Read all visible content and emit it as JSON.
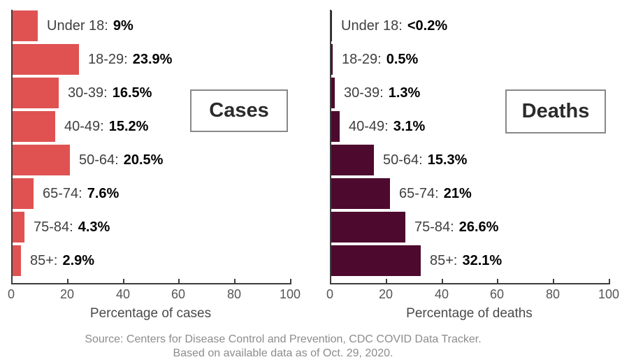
{
  "chart_data": [
    {
      "type": "bar",
      "orientation": "horizontal",
      "title": "Cases",
      "xlabel": "Percentage of cases",
      "xlim": [
        0,
        100
      ],
      "xticks": [
        0,
        20,
        40,
        60,
        80,
        100
      ],
      "grid": false,
      "legend": "none",
      "bar_color": "#e05252",
      "categories": [
        "Under 18",
        "18-29",
        "30-39",
        "40-49",
        "50-64",
        "65-74",
        "75-84",
        "85+"
      ],
      "values": [
        9,
        23.9,
        16.5,
        15.2,
        20.5,
        7.6,
        4.3,
        2.9
      ],
      "value_labels": [
        "9%",
        "23.9%",
        "16.5%",
        "15.2%",
        "20.5%",
        "7.6%",
        "4.3%",
        "2.9%"
      ],
      "category_labels": [
        "Under 18:",
        "18-29:",
        "30-39:",
        "40-49:",
        "50-64:",
        "65-74:",
        "75-84:",
        "85+:"
      ]
    },
    {
      "type": "bar",
      "orientation": "horizontal",
      "title": "Deaths",
      "xlabel": "Percentage of deaths",
      "xlim": [
        0,
        100
      ],
      "xticks": [
        0,
        20,
        40,
        60,
        80,
        100
      ],
      "grid": false,
      "legend": "none",
      "bar_color": "#4d0a2e",
      "categories": [
        "Under 18",
        "18-29",
        "30-39",
        "40-49",
        "50-64",
        "65-74",
        "75-84",
        "85+"
      ],
      "values": [
        0.2,
        0.5,
        1.3,
        3.1,
        15.3,
        21,
        26.6,
        32.1
      ],
      "value_labels": [
        "<0.2%",
        "0.5%",
        "1.3%",
        "3.1%",
        "15.3%",
        "21%",
        "26.6%",
        "32.1%"
      ],
      "category_labels": [
        "Under 18:",
        "18-29:",
        "30-39:",
        "40-49:",
        "50-64:",
        "65-74:",
        "75-84:",
        "85+:"
      ]
    }
  ],
  "source": {
    "line1": "Source: Centers for Disease Control and Prevention, CDC COVID Data Tracker.",
    "line2": "Based on available data as of Oct. 29, 2020."
  },
  "colors": {
    "cases_bar": "#e05252",
    "deaths_bar": "#4d0a2e",
    "axis": "#3d3d3d",
    "category_text": "#3f3f3f",
    "value_text": "#000000",
    "tick_text": "#555555",
    "axis_title_text": "#4a4a4a",
    "source_text": "#8c8c8c",
    "title_box_border": "#888888"
  }
}
